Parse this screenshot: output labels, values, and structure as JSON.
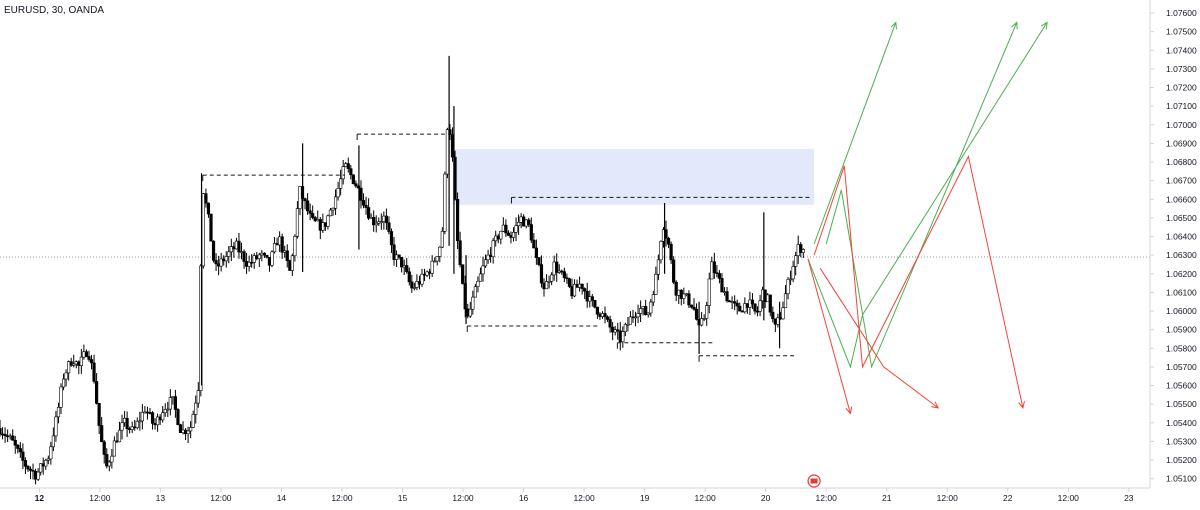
{
  "header": {
    "symbol_title": "EURUSD, 30, OANDA"
  },
  "chart_data": {
    "type": "candlestick",
    "title": "EURUSD, 30, OANDA",
    "ylim": [
      1.0505,
      1.0767
    ],
    "y_ticks": [
      "1.07600",
      "1.07500",
      "1.07400",
      "1.07300",
      "1.07200",
      "1.07100",
      "1.07000",
      "1.06900",
      "1.06800",
      "1.06700",
      "1.06600",
      "1.06500",
      "1.06400",
      "1.06300",
      "1.06200",
      "1.06100",
      "1.06000",
      "1.05900",
      "1.05800",
      "1.05700",
      "1.05600",
      "1.05500",
      "1.05400",
      "1.05300",
      "1.05200",
      "1.05100"
    ],
    "x_ticks": [
      {
        "label": "12",
        "t": 0.65,
        "bold": true
      },
      {
        "label": "12:00",
        "t": 1.65
      },
      {
        "label": "13",
        "t": 2.65
      },
      {
        "label": "12:00",
        "t": 3.65
      },
      {
        "label": "14",
        "t": 4.65
      },
      {
        "label": "12:00",
        "t": 5.65
      },
      {
        "label": "15",
        "t": 6.65
      },
      {
        "label": "12:00",
        "t": 7.65
      },
      {
        "label": "16",
        "t": 8.65
      },
      {
        "label": "12:00",
        "t": 9.65
      },
      {
        "label": "19",
        "t": 10.65
      },
      {
        "label": "12:00",
        "t": 11.65
      },
      {
        "label": "20",
        "t": 12.65
      },
      {
        "label": "12:00",
        "t": 13.65
      },
      {
        "label": "21",
        "t": 14.65
      },
      {
        "label": "12:00",
        "t": 15.65
      },
      {
        "label": "22",
        "t": 16.65
      },
      {
        "label": "12:00",
        "t": 17.65
      },
      {
        "label": "23",
        "t": 18.65
      }
    ],
    "price_path": [
      [
        0.0,
        1.0537
      ],
      [
        0.2,
        1.053
      ],
      [
        0.4,
        1.0518
      ],
      [
        0.6,
        1.0512
      ],
      [
        0.8,
        1.0522
      ],
      [
        0.95,
        1.0545
      ],
      [
        1.05,
        1.0565
      ],
      [
        1.2,
        1.0575
      ],
      [
        1.3,
        1.057
      ],
      [
        1.45,
        1.058
      ],
      [
        1.55,
        1.0565
      ],
      [
        1.65,
        1.0535
      ],
      [
        1.75,
        1.0515
      ],
      [
        1.9,
        1.053
      ],
      [
        2.05,
        1.054
      ],
      [
        2.2,
        1.0535
      ],
      [
        2.4,
        1.0548
      ],
      [
        2.55,
        1.0538
      ],
      [
        2.7,
        1.0548
      ],
      [
        2.85,
        1.0552
      ],
      [
        3.0,
        1.0535
      ],
      [
        3.15,
        1.0538
      ],
      [
        3.28,
        1.056
      ],
      [
        3.32,
        1.063
      ],
      [
        3.36,
        1.0665
      ],
      [
        3.45,
        1.0648
      ],
      [
        3.55,
        1.0622
      ],
      [
        3.7,
        1.0628
      ],
      [
        3.9,
        1.0635
      ],
      [
        4.1,
        1.0625
      ],
      [
        4.3,
        1.063
      ],
      [
        4.45,
        1.0625
      ],
      [
        4.6,
        1.064
      ],
      [
        4.8,
        1.062
      ],
      [
        4.95,
        1.0665
      ],
      [
        5.15,
        1.0648
      ],
      [
        5.35,
        1.0645
      ],
      [
        5.55,
        1.0662
      ],
      [
        5.7,
        1.0678
      ],
      [
        5.85,
        1.067
      ],
      [
        6.0,
        1.066
      ],
      [
        6.15,
        1.0648
      ],
      [
        6.35,
        1.065
      ],
      [
        6.5,
        1.063
      ],
      [
        6.65,
        1.0625
      ],
      [
        6.8,
        1.0612
      ],
      [
        7.0,
        1.0618
      ],
      [
        7.15,
        1.0625
      ],
      [
        7.3,
        1.0638
      ],
      [
        7.4,
        1.0705
      ],
      [
        7.46,
        1.069
      ],
      [
        7.55,
        1.064
      ],
      [
        7.65,
        1.061
      ],
      [
        7.72,
        1.0595
      ],
      [
        7.85,
        1.061
      ],
      [
        8.0,
        1.0625
      ],
      [
        8.15,
        1.0635
      ],
      [
        8.3,
        1.0645
      ],
      [
        8.45,
        1.064
      ],
      [
        8.6,
        1.065
      ],
      [
        8.75,
        1.0645
      ],
      [
        8.85,
        1.0628
      ],
      [
        9.0,
        1.0612
      ],
      [
        9.15,
        1.0625
      ],
      [
        9.3,
        1.0618
      ],
      [
        9.45,
        1.061
      ],
      [
        9.6,
        1.0615
      ],
      [
        9.75,
        1.0605
      ],
      [
        9.95,
        1.0598
      ],
      [
        10.1,
        1.059
      ],
      [
        10.25,
        1.0585
      ],
      [
        10.4,
        1.0595
      ],
      [
        10.55,
        1.0602
      ],
      [
        10.7,
        1.0598
      ],
      [
        10.85,
        1.062
      ],
      [
        10.95,
        1.0648
      ],
      [
        11.05,
        1.0635
      ],
      [
        11.15,
        1.0612
      ],
      [
        11.3,
        1.0608
      ],
      [
        11.45,
        1.0603
      ],
      [
        11.55,
        1.059
      ],
      [
        11.65,
        1.0598
      ],
      [
        11.75,
        1.0625
      ],
      [
        11.9,
        1.0615
      ],
      [
        12.05,
        1.0605
      ],
      [
        12.2,
        1.06
      ],
      [
        12.35,
        1.0605
      ],
      [
        12.5,
        1.0598
      ],
      [
        12.6,
        1.061
      ],
      [
        12.7,
        1.0605
      ],
      [
        12.8,
        1.059
      ],
      [
        12.9,
        1.0598
      ],
      [
        13.0,
        1.0612
      ],
      [
        13.1,
        1.0625
      ],
      [
        13.2,
        1.0635
      ],
      [
        13.3,
        1.0632
      ]
    ],
    "spike_candles": [
      {
        "t": 3.33,
        "high": 1.0674,
        "low": 1.056
      },
      {
        "t": 5.0,
        "high": 1.069,
        "low": 1.0621
      },
      {
        "t": 5.93,
        "high": 1.0689,
        "low": 1.0633
      },
      {
        "t": 7.42,
        "high": 1.0737,
        "low": 1.0635
      },
      {
        "t": 7.5,
        "high": 1.071,
        "low": 1.062
      },
      {
        "t": 7.7,
        "high": 1.063,
        "low": 1.0593
      },
      {
        "t": 10.98,
        "high": 1.0658,
        "low": 1.062
      },
      {
        "t": 11.55,
        "high": 1.0605,
        "low": 1.0577
      },
      {
        "t": 12.62,
        "high": 1.0653,
        "low": 1.0595
      },
      {
        "t": 12.88,
        "high": 1.0605,
        "low": 1.058
      }
    ],
    "current_price_line": 1.0629,
    "levels": [
      {
        "t1": 3.35,
        "t2": 5.7,
        "price": 1.0673
      },
      {
        "t1": 5.9,
        "t2": 7.35,
        "price": 1.0695
      },
      {
        "t1": 8.45,
        "t2": 13.4,
        "price": 1.0661
      },
      {
        "t1": 7.72,
        "t2": 9.9,
        "price": 1.0592
      },
      {
        "t1": 10.2,
        "t2": 11.8,
        "price": 1.0583
      },
      {
        "t1": 11.55,
        "t2": 13.15,
        "price": 1.0576
      }
    ],
    "zone": {
      "t1": 7.48,
      "t2": 13.45,
      "price_top": 1.0687,
      "price_bottom": 1.0657,
      "color": "#e3e9fb"
    },
    "scenarios": {
      "green_color": "#4caf50",
      "red_color": "#f44336",
      "green": [
        [
          [
            13.45,
            1.0636
          ],
          [
            14.8,
            1.0755
          ]
        ],
        [
          [
            13.65,
            1.0636
          ],
          [
            13.9,
            1.0665
          ],
          [
            14.4,
            1.057
          ],
          [
            16.8,
            1.0755
          ]
        ],
        [
          [
            13.35,
            1.0628
          ],
          [
            14.05,
            1.057
          ],
          [
            14.25,
            1.0598
          ],
          [
            17.3,
            1.0755
          ]
        ]
      ],
      "red": [
        [
          [
            13.35,
            1.0628
          ],
          [
            14.05,
            1.0545
          ]
        ],
        [
          [
            13.45,
            1.063
          ],
          [
            13.95,
            1.0678
          ],
          [
            14.25,
            1.057
          ],
          [
            16.0,
            1.0683
          ],
          [
            16.9,
            1.0548
          ]
        ],
        [
          [
            13.55,
            1.0623
          ],
          [
            14.6,
            1.057
          ],
          [
            15.5,
            1.0548
          ]
        ]
      ]
    },
    "event_marker": {
      "t": 13.45,
      "price": 1.052,
      "color": "#e53935"
    },
    "axis_colors": {
      "text": "#131722",
      "border": "#d1d4dc",
      "candle": "#000000",
      "level": "#131722"
    }
  }
}
